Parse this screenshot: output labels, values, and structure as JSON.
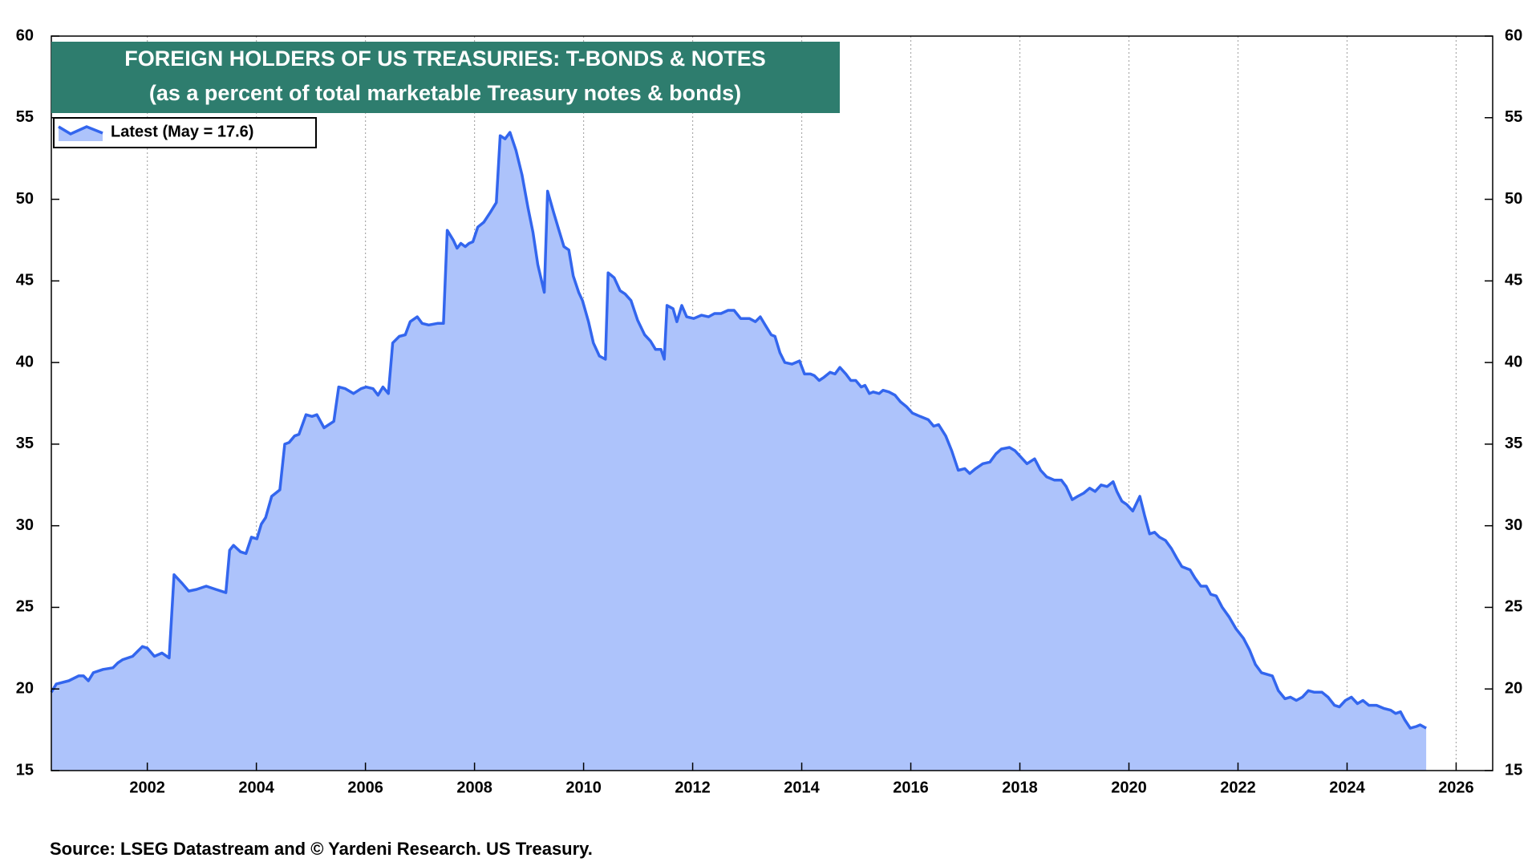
{
  "chart_data": {
    "type": "area",
    "title": "FOREIGN HOLDERS OF US TREASURIES: T-BONDS & NOTES",
    "subtitle": "(as a percent of total marketable Treasury notes & bonds)",
    "source": "Source: LSEG Datastream and © Yardeni Research. US Treasury.",
    "xlim": [
      2000.24,
      2026.67
    ],
    "xticks": [
      2002,
      2004,
      2006,
      2008,
      2010,
      2012,
      2014,
      2016,
      2018,
      2020,
      2022,
      2024,
      2026
    ],
    "ylim": [
      15,
      60
    ],
    "yticks": [
      15,
      20,
      25,
      30,
      35,
      40,
      45,
      50,
      55,
      60
    ],
    "y2lim": [
      15,
      60
    ],
    "y2ticks": [
      15,
      20,
      25,
      30,
      35,
      40,
      45,
      50,
      55,
      60
    ],
    "grid": true,
    "legend": "upper left",
    "fill_color": "#adc3fb",
    "x": [
      2000.24,
      2000.33,
      2000.56,
      2000.74,
      2000.83,
      2000.92,
      2001.01,
      2001.19,
      2001.37,
      2001.46,
      2001.55,
      2001.73,
      2001.91,
      2002.0,
      2002.13,
      2002.27,
      2002.4,
      2002.49,
      2002.63,
      2002.76,
      2002.9,
      2003.08,
      2003.26,
      2003.44,
      2003.51,
      2003.58,
      2003.71,
      2003.81,
      2003.91,
      2004.01,
      2004.09,
      2004.17,
      2004.28,
      2004.43,
      2004.52,
      2004.6,
      2004.7,
      2004.78,
      2004.91,
      2005.02,
      2005.11,
      2005.24,
      2005.42,
      2005.51,
      2005.63,
      2005.78,
      2005.92,
      2006.01,
      2006.14,
      2006.23,
      2006.32,
      2006.42,
      2006.5,
      2006.62,
      2006.73,
      2006.82,
      2006.95,
      2007.04,
      2007.16,
      2007.32,
      2007.43,
      2007.5,
      2007.61,
      2007.68,
      2007.75,
      2007.83,
      2007.9,
      2007.97,
      2008.06,
      2008.17,
      2008.29,
      2008.4,
      2008.47,
      2008.56,
      2008.65,
      2008.76,
      2008.87,
      2008.98,
      2009.07,
      2009.16,
      2009.28,
      2009.34,
      2009.45,
      2009.54,
      2009.64,
      2009.73,
      2009.81,
      2009.91,
      2009.98,
      2010.09,
      2010.18,
      2010.29,
      2010.4,
      2010.45,
      2010.56,
      2010.67,
      2010.76,
      2010.87,
      2010.99,
      2011.12,
      2011.23,
      2011.32,
      2011.42,
      2011.48,
      2011.53,
      2011.64,
      2011.71,
      2011.8,
      2011.89,
      2012.02,
      2012.16,
      2012.29,
      2012.4,
      2012.52,
      2012.65,
      2012.76,
      2012.88,
      2013.04,
      2013.15,
      2013.24,
      2013.33,
      2013.44,
      2013.51,
      2013.6,
      2013.69,
      2013.82,
      2013.96,
      2014.05,
      2014.16,
      2014.23,
      2014.32,
      2014.41,
      2014.52,
      2014.61,
      2014.7,
      2014.81,
      2014.9,
      2014.99,
      2015.09,
      2015.16,
      2015.24,
      2015.31,
      2015.42,
      2015.49,
      2015.6,
      2015.71,
      2015.81,
      2015.92,
      2016.03,
      2016.17,
      2016.32,
      2016.42,
      2016.51,
      2016.64,
      2016.75,
      2016.87,
      2016.99,
      2017.08,
      2017.19,
      2017.32,
      2017.45,
      2017.56,
      2017.66,
      2017.81,
      2017.91,
      2018.02,
      2018.13,
      2018.27,
      2018.38,
      2018.49,
      2018.63,
      2018.76,
      2018.85,
      2018.96,
      2019.06,
      2019.17,
      2019.28,
      2019.38,
      2019.49,
      2019.6,
      2019.71,
      2019.78,
      2019.87,
      2019.96,
      2020.07,
      2020.2,
      2020.29,
      2020.38,
      2020.47,
      2020.56,
      2020.67,
      2020.78,
      2020.88,
      2020.97,
      2021.12,
      2021.21,
      2021.32,
      2021.42,
      2021.5,
      2021.6,
      2021.71,
      2021.84,
      2021.96,
      2022.1,
      2022.21,
      2022.32,
      2022.43,
      2022.53,
      2022.63,
      2022.74,
      2022.86,
      2022.96,
      2023.07,
      2023.18,
      2023.29,
      2023.4,
      2023.54,
      2023.65,
      2023.77,
      2023.86,
      2023.97,
      2024.08,
      2024.19,
      2024.29,
      2024.4,
      2024.54,
      2024.68,
      2024.8,
      2024.89,
      2024.98,
      2025.06,
      2025.16,
      2025.27,
      2025.34,
      2025.45
    ],
    "series": [
      {
        "name": "Latest (May = 17.6)",
        "color": "#3366ee",
        "values": [
          19.8,
          20.3,
          20.5,
          20.8,
          20.8,
          20.5,
          21.0,
          21.2,
          21.3,
          21.6,
          21.8,
          22.0,
          22.6,
          22.5,
          22.0,
          22.2,
          21.9,
          27.0,
          26.5,
          26.0,
          26.1,
          26.3,
          26.1,
          25.9,
          28.5,
          28.8,
          28.4,
          28.3,
          29.3,
          29.2,
          30.1,
          30.5,
          31.8,
          32.2,
          35.0,
          35.1,
          35.5,
          35.6,
          36.8,
          36.7,
          36.8,
          36.0,
          36.4,
          38.5,
          38.4,
          38.1,
          38.4,
          38.5,
          38.4,
          38.0,
          38.5,
          38.1,
          41.2,
          41.6,
          41.7,
          42.5,
          42.8,
          42.4,
          42.3,
          42.4,
          42.4,
          48.1,
          47.5,
          47.0,
          47.3,
          47.1,
          47.3,
          47.4,
          48.3,
          48.6,
          49.2,
          49.8,
          53.9,
          53.7,
          54.1,
          53.0,
          51.5,
          49.5,
          48.0,
          46.0,
          44.3,
          50.5,
          49.2,
          48.2,
          47.1,
          46.9,
          45.3,
          44.3,
          43.8,
          42.5,
          41.2,
          40.4,
          40.2,
          45.5,
          45.2,
          44.4,
          44.2,
          43.8,
          42.6,
          41.7,
          41.3,
          40.8,
          40.8,
          40.2,
          43.5,
          43.3,
          42.5,
          43.5,
          42.8,
          42.7,
          42.9,
          42.8,
          43.0,
          43.0,
          43.2,
          43.2,
          42.7,
          42.7,
          42.5,
          42.8,
          42.3,
          41.7,
          41.6,
          40.6,
          40.0,
          39.9,
          40.1,
          39.3,
          39.3,
          39.2,
          38.9,
          39.1,
          39.4,
          39.3,
          39.7,
          39.3,
          38.9,
          38.9,
          38.5,
          38.6,
          38.1,
          38.2,
          38.1,
          38.3,
          38.2,
          38.0,
          37.6,
          37.3,
          36.9,
          36.7,
          36.5,
          36.1,
          36.2,
          35.5,
          34.6,
          33.4,
          33.5,
          33.2,
          33.5,
          33.8,
          33.9,
          34.4,
          34.7,
          34.8,
          34.6,
          34.2,
          33.8,
          34.1,
          33.4,
          33.0,
          32.8,
          32.8,
          32.4,
          31.6,
          31.8,
          32.0,
          32.3,
          32.1,
          32.5,
          32.4,
          32.7,
          32.1,
          31.5,
          31.3,
          30.9,
          31.8,
          30.6,
          29.5,
          29.6,
          29.3,
          29.1,
          28.6,
          28.0,
          27.5,
          27.3,
          26.8,
          26.3,
          26.3,
          25.8,
          25.7,
          25.0,
          24.4,
          23.7,
          23.1,
          22.4,
          21.5,
          21.0,
          20.9,
          20.8,
          19.9,
          19.4,
          19.5,
          19.3,
          19.5,
          19.9,
          19.8,
          19.8,
          19.5,
          19.0,
          18.9,
          19.3,
          19.5,
          19.1,
          19.3,
          19.0,
          19.0,
          18.8,
          18.7,
          18.5,
          18.6,
          18.1,
          17.6,
          17.7,
          17.8,
          17.6
        ]
      }
    ]
  }
}
